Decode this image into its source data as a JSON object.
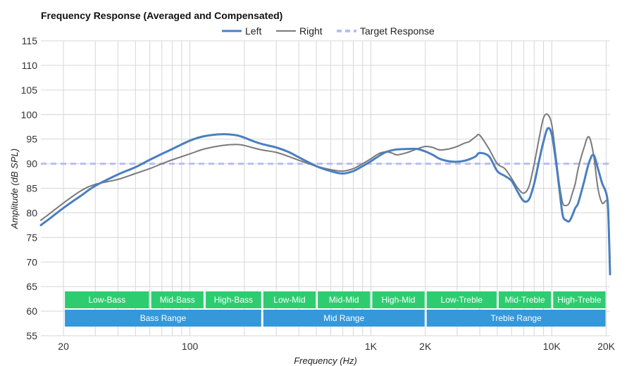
{
  "chart_data": {
    "type": "line",
    "title": "Frequency Response (Averaged and Compensated)",
    "xlabel": "Frequency (Hz)",
    "ylabel": "Amplitude (dB SPL)",
    "x_scale": "log",
    "xlim": [
      15,
      21000
    ],
    "ylim": [
      55,
      115
    ],
    "y_ticks": [
      55,
      60,
      65,
      70,
      75,
      80,
      85,
      90,
      95,
      100,
      105,
      110,
      115
    ],
    "x_ticks": [
      {
        "value": 20,
        "label": "20"
      },
      {
        "value": 100,
        "label": "100"
      },
      {
        "value": 1000,
        "label": "1K"
      },
      {
        "value": 2000,
        "label": "2K"
      },
      {
        "value": 10000,
        "label": "10K"
      },
      {
        "value": 20000,
        "label": "20K"
      }
    ],
    "grid": true,
    "legend_position": "top-center",
    "series": [
      {
        "name": "Left",
        "color": "#4a7fc1",
        "style": "solid",
        "x": [
          15,
          17,
          20,
          25,
          30,
          40,
          50,
          60,
          70,
          80,
          100,
          120,
          150,
          180,
          200,
          220,
          250,
          300,
          350,
          400,
          500,
          600,
          700,
          800,
          900,
          1000,
          1100,
          1200,
          1300,
          1400,
          1600,
          1800,
          2000,
          2200,
          2400,
          2700,
          3000,
          3300,
          3500,
          3800,
          4000,
          4500,
          5000,
          5500,
          6000,
          6500,
          7000,
          7500,
          8000,
          8500,
          9000,
          9500,
          10000,
          10500,
          11000,
          11500,
          12000,
          12500,
          13000,
          13500,
          14000,
          15000,
          16000,
          17000,
          18000,
          19000,
          20000,
          20500,
          21000
        ],
        "y": [
          77.5,
          79,
          81,
          83.5,
          85.5,
          87.8,
          89.3,
          90.8,
          92,
          93,
          94.7,
          95.6,
          96,
          95.8,
          95.3,
          94.7,
          94,
          93.3,
          92.4,
          91.3,
          89.5,
          88.5,
          88,
          88.5,
          89.5,
          90.5,
          91.5,
          92.3,
          92.7,
          92.9,
          93,
          93,
          92.5,
          91.8,
          91,
          90.5,
          90.4,
          90.6,
          90.9,
          91.5,
          92.2,
          91.5,
          88.5,
          87.5,
          86.5,
          84.2,
          82.4,
          82.8,
          86,
          90.5,
          94.5,
          97.2,
          96,
          91,
          85,
          79.5,
          78.5,
          78.3,
          79.5,
          81,
          82,
          86,
          90,
          91.8,
          89,
          86,
          84,
          80.5,
          67.5
        ]
      },
      {
        "name": "Right",
        "color": "#7a7a7a",
        "style": "solid",
        "x": [
          15,
          17,
          20,
          25,
          30,
          40,
          50,
          60,
          70,
          80,
          100,
          120,
          150,
          180,
          200,
          220,
          250,
          300,
          350,
          400,
          500,
          600,
          700,
          800,
          900,
          1000,
          1100,
          1200,
          1300,
          1400,
          1600,
          1800,
          2000,
          2200,
          2400,
          2700,
          3000,
          3300,
          3500,
          3800,
          4000,
          4500,
          5000,
          5500,
          6000,
          6500,
          7000,
          7500,
          8000,
          8500,
          9000,
          9500,
          10000,
          10500,
          11000,
          11500,
          12000,
          12500,
          13000,
          13500,
          14000,
          15000,
          16000,
          17000,
          18000,
          19000,
          20000,
          20500,
          21000
        ],
        "y": [
          78.5,
          80,
          82,
          84.5,
          85.8,
          86.8,
          88,
          89,
          90,
          90.8,
          92,
          93,
          93.7,
          93.9,
          93.7,
          93.3,
          92.8,
          92.3,
          91.5,
          90.7,
          89.5,
          88.8,
          88.5,
          89,
          90,
          91,
          92,
          92.4,
          92.2,
          91.8,
          92.3,
          93,
          93.5,
          93.3,
          92.8,
          93,
          93.5,
          94.2,
          94.5,
          95.5,
          95.8,
          93,
          90,
          89,
          87,
          85,
          84,
          85.5,
          90,
          95,
          99.3,
          100,
          98,
          92,
          86,
          82,
          81.5,
          82,
          84,
          86,
          89,
          93,
          95.5,
          92,
          85,
          82,
          82.5,
          81.5,
          69
        ]
      },
      {
        "name": "Target Response",
        "color": "#b8bdf5",
        "style": "dashed",
        "x": [
          15,
          21000
        ],
        "y": [
          90,
          90
        ]
      }
    ],
    "bands": {
      "row1": [
        {
          "label": "Low-Bass",
          "from": 20,
          "to": 60
        },
        {
          "label": "Mid-Bass",
          "from": 60,
          "to": 120
        },
        {
          "label": "High-Bass",
          "from": 120,
          "to": 250
        },
        {
          "label": "Low-Mid",
          "from": 250,
          "to": 500
        },
        {
          "label": "Mid-Mid",
          "from": 500,
          "to": 1000
        },
        {
          "label": "High-Mid",
          "from": 1000,
          "to": 2000
        },
        {
          "label": "Low-Treble",
          "from": 2000,
          "to": 5000
        },
        {
          "label": "Mid-Treble",
          "from": 5000,
          "to": 10000
        },
        {
          "label": "High-Treble",
          "from": 10000,
          "to": 20000
        }
      ],
      "row2": [
        {
          "label": "Bass Range",
          "from": 20,
          "to": 250
        },
        {
          "label": "Mid Range",
          "from": 250,
          "to": 2000
        },
        {
          "label": "Treble Range",
          "from": 2000,
          "to": 20000
        }
      ],
      "row1_color": "#2ecc71",
      "row2_color": "#3498db"
    }
  }
}
